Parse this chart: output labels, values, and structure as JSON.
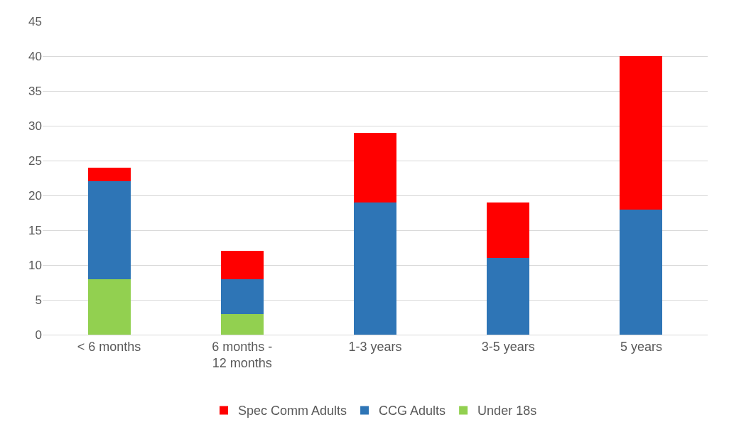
{
  "chart_data": {
    "type": "bar",
    "stacked": true,
    "categories": [
      "< 6 months",
      "6 months - 12 months",
      "1-3 years",
      "3-5 years",
      "5 years"
    ],
    "series": [
      {
        "name": "Under 18s",
        "color": "#92d050",
        "values": [
          8,
          3,
          null,
          null,
          null
        ]
      },
      {
        "name": "CCG Adults",
        "color": "#2e75b6",
        "values": [
          14,
          5,
          19,
          11,
          18
        ]
      },
      {
        "name": "Spec Comm Adults",
        "color": "#ff0000",
        "values": [
          2,
          4,
          10,
          8,
          22
        ]
      }
    ],
    "ylim": [
      0,
      45
    ],
    "yticks": [
      0,
      5,
      10,
      15,
      20,
      25,
      30,
      35,
      40,
      45
    ],
    "grid": "y",
    "legend": "bottom"
  }
}
